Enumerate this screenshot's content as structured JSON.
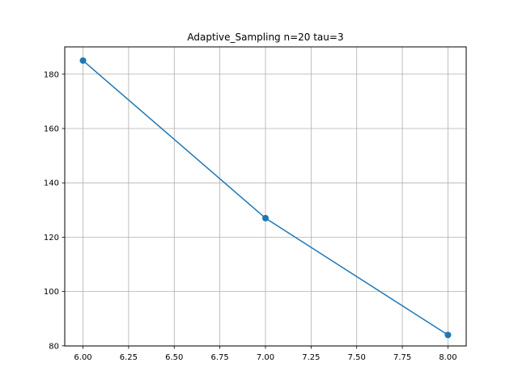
{
  "chart_data": {
    "type": "line",
    "title": "Adaptive_Sampling n=20 tau=3",
    "xlabel": "",
    "ylabel": "",
    "x": [
      6.0,
      7.0,
      8.0
    ],
    "series": [
      {
        "values": [
          185,
          127,
          84
        ],
        "color": "#1f77b4",
        "marker": "circle"
      }
    ],
    "xlim": [
      5.9,
      8.1
    ],
    "ylim": [
      79.95,
      190.05
    ],
    "x_ticks": [
      "6.00",
      "6.25",
      "6.50",
      "6.75",
      "7.00",
      "7.25",
      "7.50",
      "7.75",
      "8.00"
    ],
    "y_ticks": [
      "80",
      "100",
      "120",
      "140",
      "160",
      "180"
    ],
    "grid": true,
    "legend": "none"
  }
}
